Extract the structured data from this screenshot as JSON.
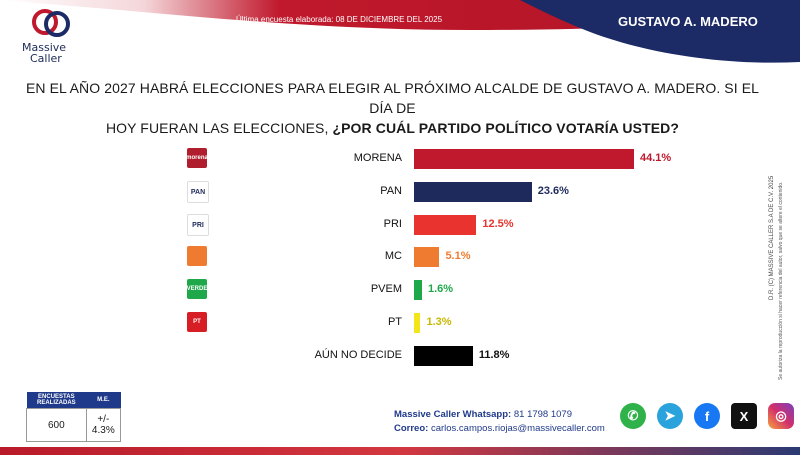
{
  "brand": {
    "line1": "Massive",
    "line2": "Caller"
  },
  "header": {
    "note": "Última encuesta elaborada: 08 DE DICIEMBRE DEL 2025",
    "region": "GUSTAVO A. MADERO",
    "colors": {
      "red": "#c0182c",
      "navy": "#1c2a66"
    }
  },
  "question": {
    "line1": "EN EL AÑO 2027 HABRÁ ELECCIONES PARA ELEGIR AL PRÓXIMO ALCALDE DE GUSTAVO A. MADERO. SI EL DÍA DE",
    "line2_plain": "HOY FUERAN LAS ELECCIONES, ",
    "line2_bold": "¿POR CUÁL PARTIDO POLÍTICO VOTARÍA USTED?"
  },
  "chart_data": {
    "type": "bar",
    "orientation": "horizontal",
    "categories": [
      "MORENA",
      "PAN",
      "PRI",
      "MC",
      "PVEM",
      "PT",
      "AÚN NO DECIDE"
    ],
    "values": [
      44.1,
      23.6,
      12.5,
      5.1,
      1.6,
      1.3,
      11.8
    ],
    "value_labels": [
      "44.1%",
      "23.6%",
      "12.5%",
      "5.1%",
      "1.6%",
      "1.3%",
      "11.8%"
    ],
    "colors": [
      "#c0182c",
      "#1f2a5c",
      "#e8332e",
      "#ee7b30",
      "#1ea84a",
      "#f2e51a",
      "#000000"
    ],
    "label_colors": [
      "#c0182c",
      "#1f2a5c",
      "#e8332e",
      "#ee7b30",
      "#1ea84a",
      "#c9b800",
      "#111111"
    ],
    "logos": [
      {
        "text": "morena",
        "bg": "#b01e2d",
        "icon": "morena-logo"
      },
      {
        "text": "PAN",
        "bg": "#ffffff",
        "icon": "pan-logo"
      },
      {
        "text": "PRI",
        "bg": "#ffffff",
        "icon": "pri-logo"
      },
      {
        "text": "",
        "bg": "#ee7b30",
        "icon": "mc-logo"
      },
      {
        "text": "VERDE",
        "bg": "#1ea84a",
        "icon": "pvem-logo"
      },
      {
        "text": "PT",
        "bg": "#d81e25",
        "icon": "pt-logo"
      },
      null
    ],
    "xlim": [
      0,
      50
    ],
    "grid": false,
    "legend": "none"
  },
  "side_note": {
    "line1": "D.R. (C) MASSIVE CALLER S.A DE C.V. 2025",
    "line2": "Se autoriza la reproducción si hacer referencia del autor, salvo que se altere el contenido."
  },
  "sample": {
    "h1": "ENCUESTAS REALIZADAS",
    "h2": "M.E.",
    "v1": "600",
    "v2": "+/- 4.3%"
  },
  "contact": {
    "whatsapp_label": "Massive Caller Whatsapp:",
    "whatsapp_value": "81 1798 1079",
    "email_label": "Correo:",
    "email_value": "carlos.campos.riojas@massivecaller.com"
  },
  "social": [
    {
      "name": "whatsapp-icon",
      "glyph": "✆",
      "color": "#2fb24a"
    },
    {
      "name": "telegram-icon",
      "glyph": "➤",
      "color": "#2aa3dc"
    },
    {
      "name": "facebook-icon",
      "glyph": "f",
      "color": "#1877f2"
    },
    {
      "name": "x-icon",
      "glyph": "X",
      "color": "#111111"
    },
    {
      "name": "instagram-icon",
      "glyph": "◎",
      "color": "#d1306b"
    }
  ]
}
